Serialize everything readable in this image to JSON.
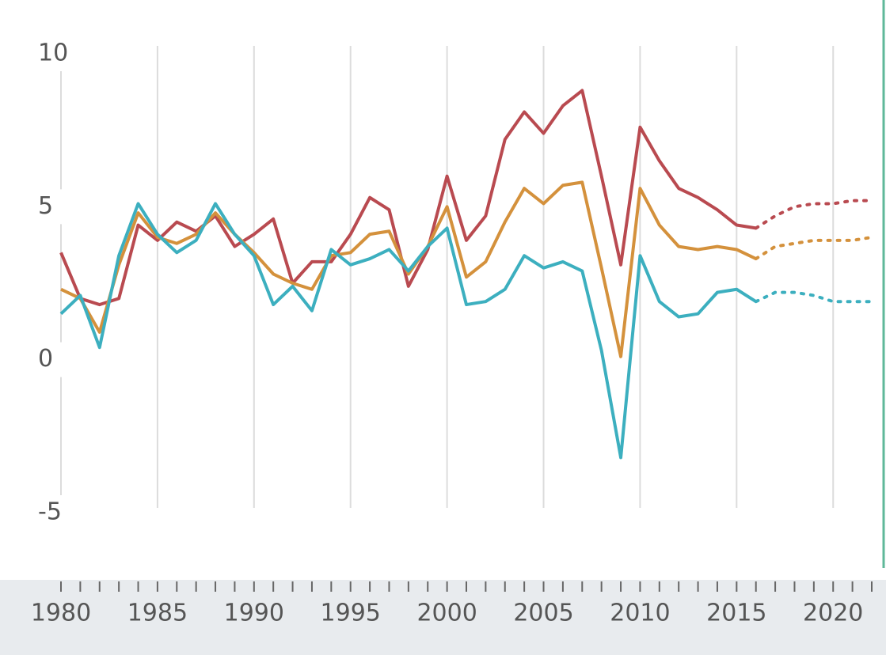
{
  "chart_data": {
    "type": "line",
    "x": [
      1980,
      1981,
      1982,
      1983,
      1984,
      1985,
      1986,
      1987,
      1988,
      1989,
      1990,
      1991,
      1992,
      1993,
      1994,
      1995,
      1996,
      1997,
      1998,
      1999,
      2000,
      2001,
      2002,
      2003,
      2004,
      2005,
      2006,
      2007,
      2008,
      2009,
      2010,
      2011,
      2012,
      2013,
      2014,
      2015,
      2016,
      2017,
      2018,
      2019,
      2020,
      2021,
      2022
    ],
    "series": [
      {
        "color": "#b94a50",
        "style": "solid",
        "values": [
          3.5,
          2.0,
          1.8,
          2.0,
          4.4,
          3.9,
          4.5,
          4.2,
          4.7,
          3.7,
          4.1,
          4.6,
          2.5,
          3.2,
          3.2,
          4.1,
          5.3,
          4.9,
          2.4,
          3.6,
          6.0,
          3.9,
          4.7,
          7.2,
          8.1,
          7.4,
          8.3,
          8.8,
          6.0,
          3.1,
          7.6,
          6.5,
          5.6,
          5.3,
          4.9,
          4.4,
          4.3,
          null,
          null,
          null,
          null,
          null,
          null
        ]
      },
      {
        "color": "#b94a50",
        "style": "dotted",
        "values": [
          null,
          null,
          null,
          null,
          null,
          null,
          null,
          null,
          null,
          null,
          null,
          null,
          null,
          null,
          null,
          null,
          null,
          null,
          null,
          null,
          null,
          null,
          null,
          null,
          null,
          null,
          null,
          null,
          null,
          null,
          null,
          null,
          null,
          null,
          null,
          null,
          4.3,
          4.7,
          5.0,
          5.1,
          5.1,
          5.2,
          5.2
        ]
      },
      {
        "color": "#d4913c",
        "style": "solid",
        "values": [
          2.3,
          2.0,
          0.9,
          3.1,
          4.8,
          4.0,
          3.8,
          4.1,
          4.8,
          4.1,
          3.5,
          2.8,
          2.5,
          2.3,
          3.4,
          3.5,
          4.1,
          4.2,
          2.8,
          3.7,
          5.0,
          2.7,
          3.2,
          4.5,
          5.6,
          5.1,
          5.7,
          5.8,
          3.0,
          0.1,
          5.6,
          4.4,
          3.7,
          3.6,
          3.7,
          3.6,
          3.3,
          null,
          null,
          null,
          null,
          null,
          null
        ]
      },
      {
        "color": "#d4913c",
        "style": "dotted",
        "values": [
          null,
          null,
          null,
          null,
          null,
          null,
          null,
          null,
          null,
          null,
          null,
          null,
          null,
          null,
          null,
          null,
          null,
          null,
          null,
          null,
          null,
          null,
          null,
          null,
          null,
          null,
          null,
          null,
          null,
          null,
          null,
          null,
          null,
          null,
          null,
          null,
          3.3,
          3.7,
          3.8,
          3.9,
          3.9,
          3.9,
          4.0
        ]
      },
      {
        "color": "#3cafbf",
        "style": "solid",
        "values": [
          1.5,
          2.1,
          0.4,
          3.4,
          5.1,
          4.1,
          3.5,
          3.9,
          5.1,
          4.1,
          3.4,
          1.8,
          2.4,
          1.6,
          3.6,
          3.1,
          3.3,
          3.6,
          2.9,
          3.7,
          4.3,
          1.8,
          1.9,
          2.3,
          3.4,
          3.0,
          3.2,
          2.9,
          0.3,
          -3.2,
          3.4,
          1.9,
          1.4,
          1.5,
          2.2,
          2.3,
          1.9,
          null,
          null,
          null,
          null,
          null,
          null
        ]
      },
      {
        "color": "#3cafbf",
        "style": "dotted",
        "values": [
          null,
          null,
          null,
          null,
          null,
          null,
          null,
          null,
          null,
          null,
          null,
          null,
          null,
          null,
          null,
          null,
          null,
          null,
          null,
          null,
          null,
          null,
          null,
          null,
          null,
          null,
          null,
          null,
          null,
          null,
          null,
          null,
          null,
          null,
          null,
          null,
          1.9,
          2.2,
          2.2,
          2.1,
          1.9,
          1.9,
          1.9
        ]
      }
    ],
    "xlim": [
      1980,
      2022
    ],
    "xticks": [
      1980,
      1985,
      1990,
      1995,
      2000,
      2005,
      2010,
      2015,
      2020
    ],
    "ylim": [
      -5,
      10
    ],
    "yticks": [
      -5,
      0,
      5,
      10
    ],
    "grid": true
  }
}
